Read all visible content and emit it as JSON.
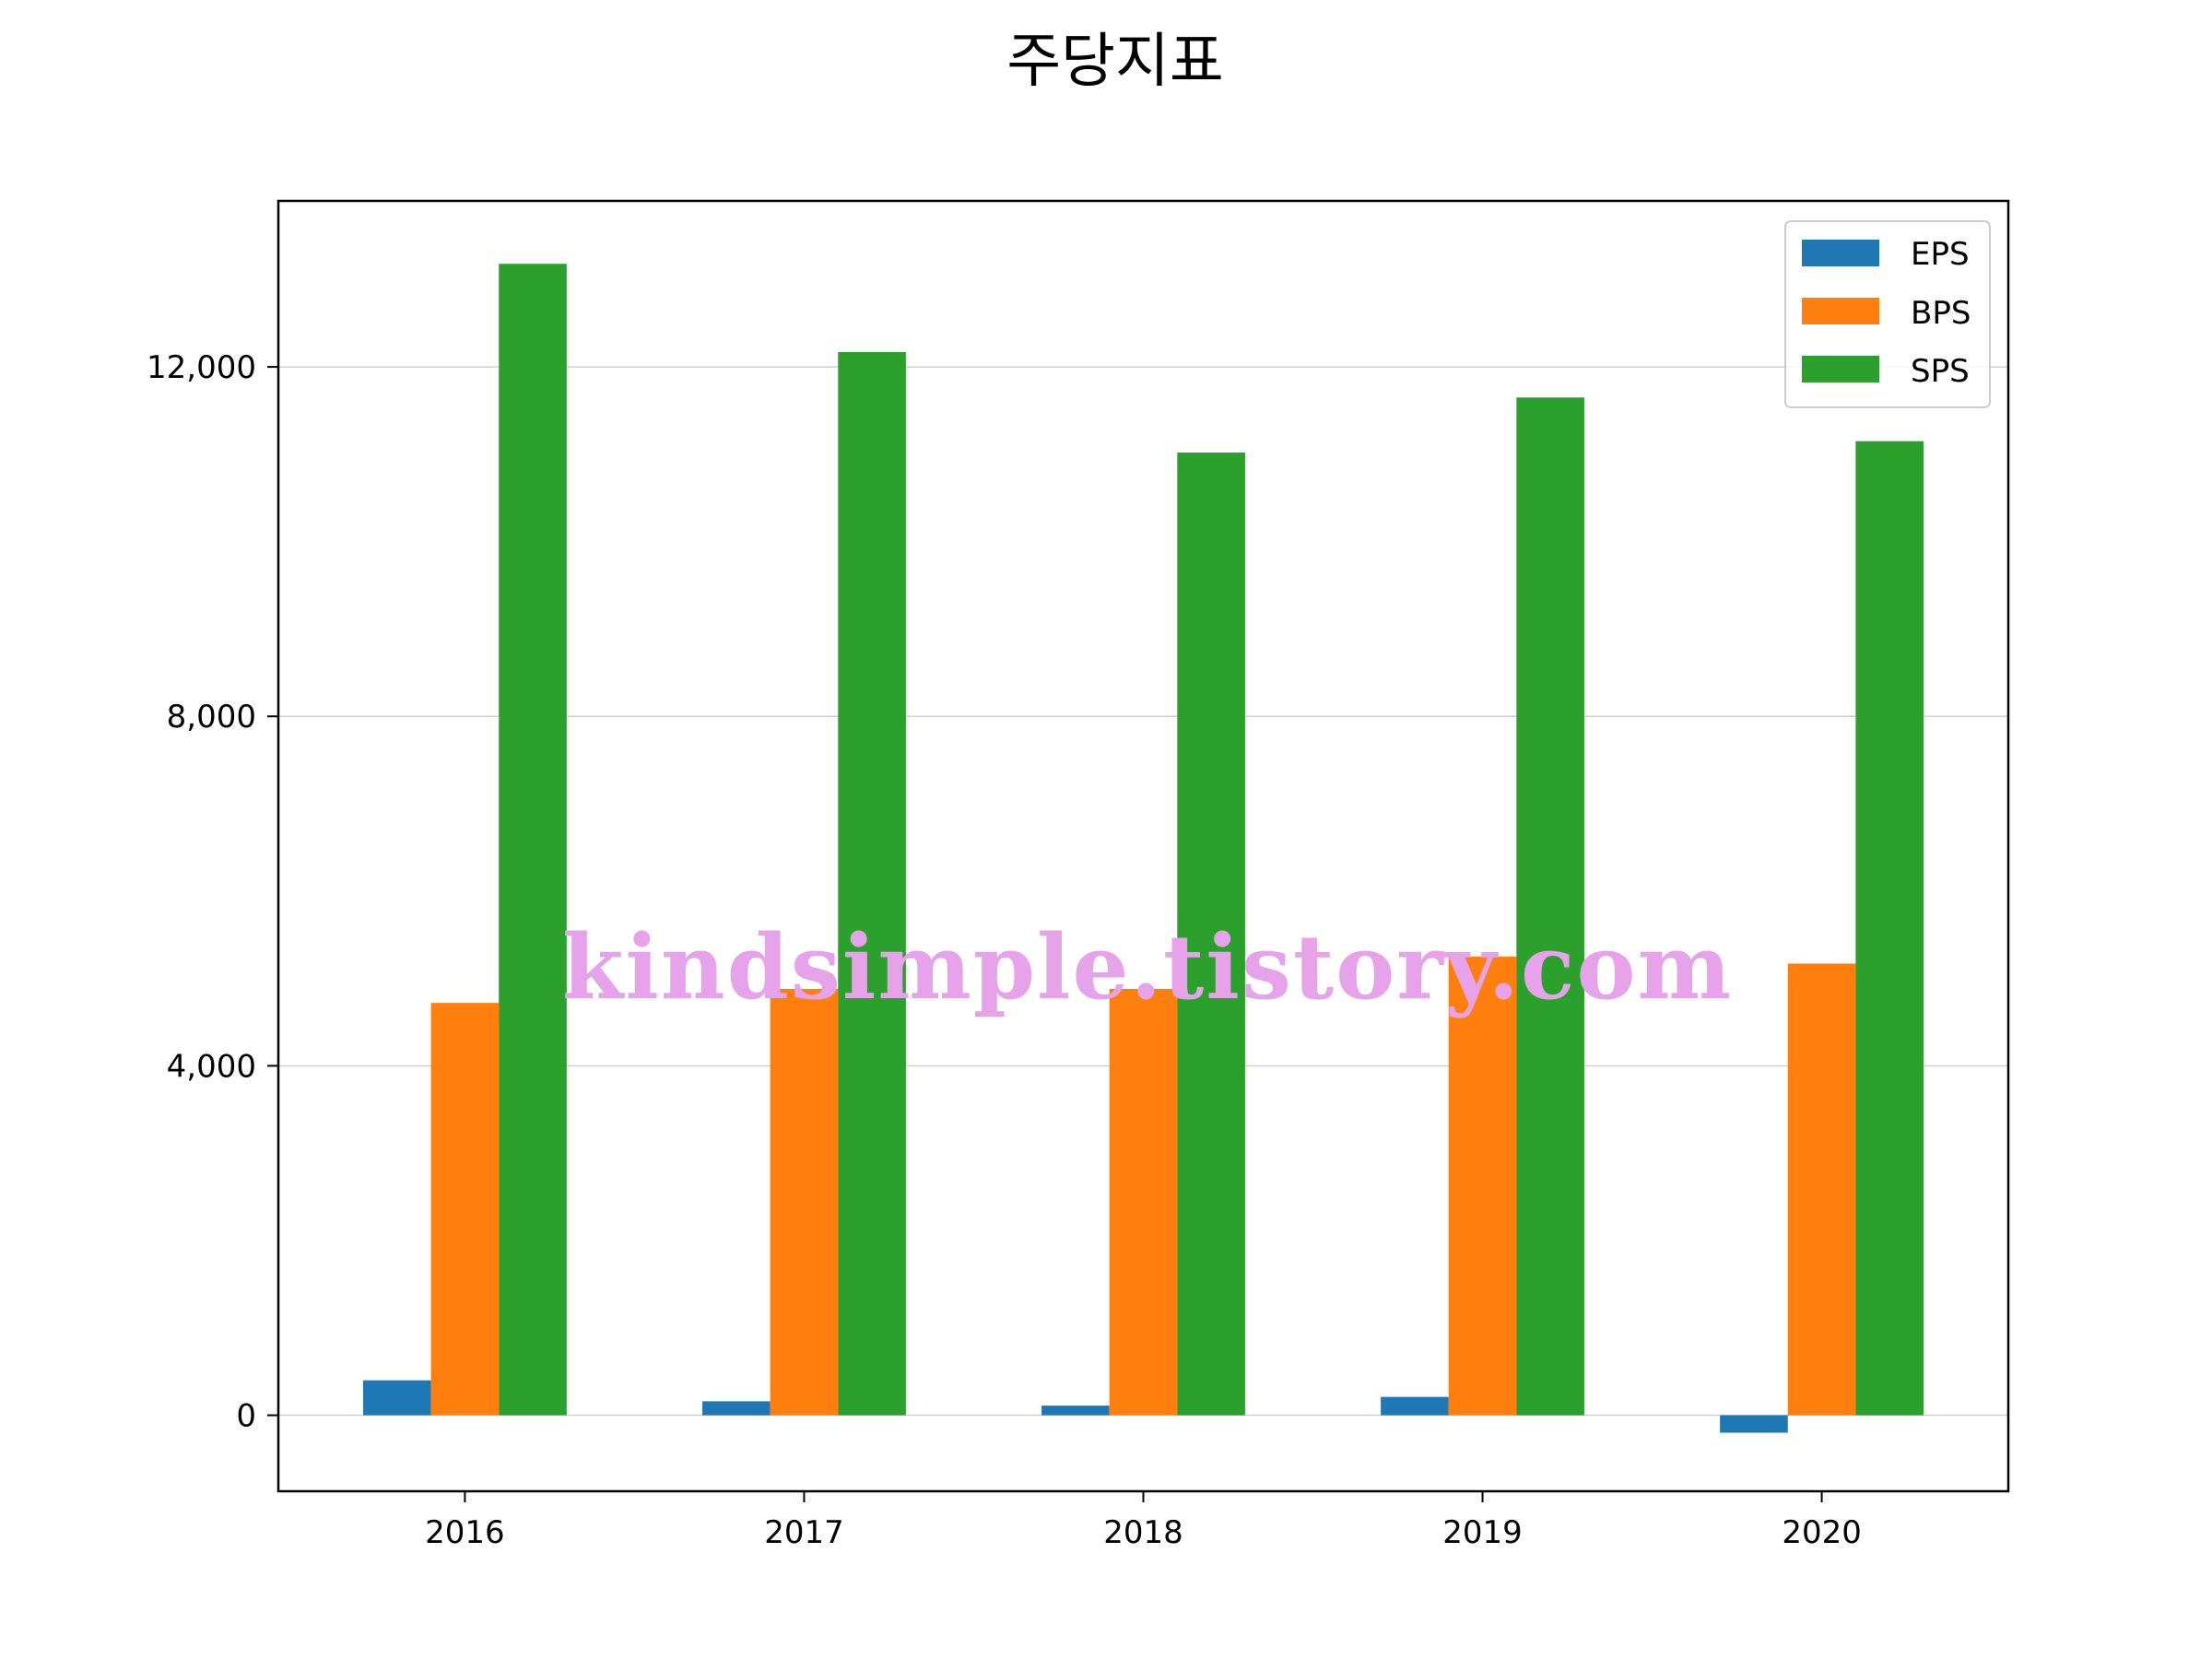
{
  "chart_data": {
    "type": "bar",
    "title": "주당지표",
    "xlabel": "",
    "ylabel": "",
    "categories": [
      "2016",
      "2017",
      "2018",
      "2019",
      "2020"
    ],
    "series": [
      {
        "name": "EPS",
        "color": "#1f77b4",
        "values": [
          400,
          160,
          110,
          210,
          -200
        ]
      },
      {
        "name": "BPS",
        "color": "#ff7f0e",
        "values": [
          4720,
          4880,
          4880,
          5250,
          5170
        ]
      },
      {
        "name": "SPS",
        "color": "#2ca02c",
        "values": [
          13180,
          12170,
          11020,
          11650,
          11150
        ]
      }
    ],
    "ylim": [
      -870,
      13900
    ],
    "yticks": [
      0,
      4000,
      8000,
      12000
    ],
    "ytick_labels": [
      "0",
      "4,000",
      "8,000",
      "12,000"
    ],
    "grid": "horizontal",
    "legend_position": "top-right"
  },
  "watermark": "kindsimple.tistory.com"
}
